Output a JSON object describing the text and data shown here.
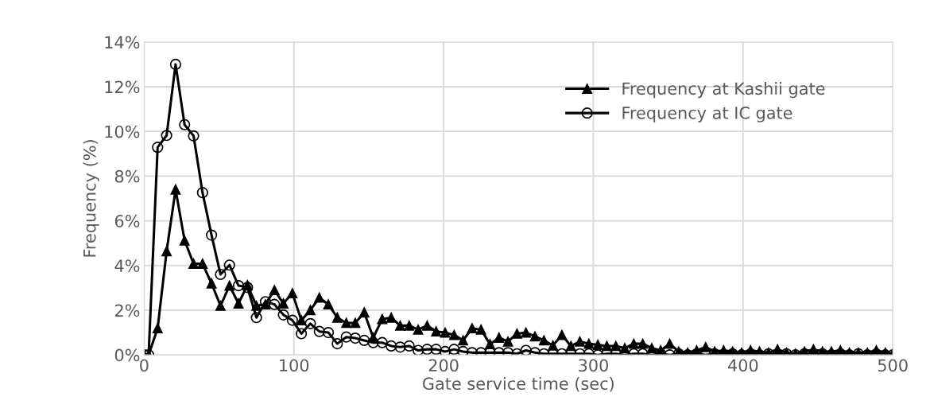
{
  "chart_data": {
    "type": "line",
    "xlabel": "Gate service time (sec)",
    "ylabel": "Frequency (%)",
    "x": [
      0,
      3,
      9,
      15,
      21,
      27,
      33,
      39,
      45,
      51,
      57,
      63,
      69,
      75,
      81,
      87,
      93,
      99,
      105,
      111,
      117,
      123,
      129,
      135,
      141,
      147,
      153,
      159,
      165,
      171,
      177,
      183,
      189,
      195,
      201,
      207,
      213,
      219,
      225,
      231,
      237,
      243,
      249,
      255,
      261,
      267,
      273,
      279,
      285,
      291,
      297,
      303,
      309,
      315,
      321,
      327,
      333,
      339,
      345,
      351,
      357,
      363,
      369,
      375,
      381,
      387,
      393,
      399,
      405,
      411,
      417,
      423,
      429,
      435,
      441,
      447,
      453,
      459,
      465,
      471,
      477,
      483,
      489,
      495,
      500
    ],
    "series": [
      {
        "name": "Frequency at Kashii gate",
        "color": "#000000",
        "marker": "triangle",
        "values": [
          0,
          0,
          1.19,
          4.64,
          7.4,
          5.12,
          4.08,
          4.08,
          3.2,
          2.2,
          3.1,
          2.3,
          3.12,
          2.2,
          2.26,
          2.9,
          2.3,
          2.76,
          1.55,
          2.0,
          2.56,
          2.26,
          1.67,
          1.43,
          1.43,
          1.9,
          0.77,
          1.6,
          1.67,
          1.31,
          1.31,
          1.13,
          1.31,
          1.05,
          1.0,
          0.89,
          0.65,
          1.19,
          1.13,
          0.48,
          0.77,
          0.6,
          0.95,
          1.0,
          0.83,
          0.65,
          0.42,
          0.89,
          0.4,
          0.6,
          0.5,
          0.45,
          0.4,
          0.4,
          0.3,
          0.5,
          0.5,
          0.3,
          0.2,
          0.5,
          0.15,
          0.1,
          0.2,
          0.35,
          0.15,
          0.2,
          0.15,
          0.1,
          0.2,
          0.15,
          0.1,
          0.25,
          0.1,
          0.05,
          0.15,
          0.25,
          0.15,
          0.15,
          0.2,
          0.1,
          0.1,
          0.1,
          0.2,
          0.1,
          0.05
        ]
      },
      {
        "name": "Frequency at IC gate",
        "color": "#000000",
        "marker": "circle",
        "values": [
          0,
          0,
          9.29,
          9.82,
          13.0,
          10.3,
          9.8,
          7.26,
          5.36,
          3.6,
          4.02,
          3.1,
          3.02,
          1.67,
          2.38,
          2.26,
          1.79,
          1.55,
          0.95,
          1.4,
          1.05,
          1.0,
          0.5,
          0.8,
          0.75,
          0.65,
          0.55,
          0.55,
          0.4,
          0.35,
          0.4,
          0.2,
          0.25,
          0.25,
          0.15,
          0.25,
          0.15,
          0.1,
          0.1,
          0.1,
          0.1,
          0.1,
          0.05,
          0.2,
          0.1,
          0.05,
          0.05,
          0.05,
          0.05,
          0.05,
          0.05,
          0.0,
          0.05,
          0.05,
          0.0,
          0.05,
          0.05,
          0.0,
          0.05,
          0.0,
          0.05,
          0.0,
          0.05,
          0.0,
          0.05,
          0.0,
          0.05,
          0.0,
          0.05,
          0.0,
          0.05,
          0.0,
          0.05,
          0.0,
          0.05,
          0.0,
          0.05,
          0.0,
          0.05,
          0.0,
          0.05,
          0.0,
          0.05,
          0.0,
          0.0
        ]
      }
    ],
    "xlim": [
      0,
      500
    ],
    "xticks": [
      0,
      100,
      200,
      300,
      400,
      500
    ],
    "ylim": [
      0,
      14
    ],
    "yticks": [
      {
        "value": 0,
        "label": "0%"
      },
      {
        "value": 2,
        "label": "2%"
      },
      {
        "value": 4,
        "label": "4%"
      },
      {
        "value": 6,
        "label": "6%"
      },
      {
        "value": 8,
        "label": "8%"
      },
      {
        "value": 10,
        "label": "10%"
      },
      {
        "value": 12,
        "label": "12%"
      },
      {
        "value": 14,
        "label": "14%"
      }
    ],
    "grid": true,
    "legend": "top right",
    "line_style": "solid"
  }
}
